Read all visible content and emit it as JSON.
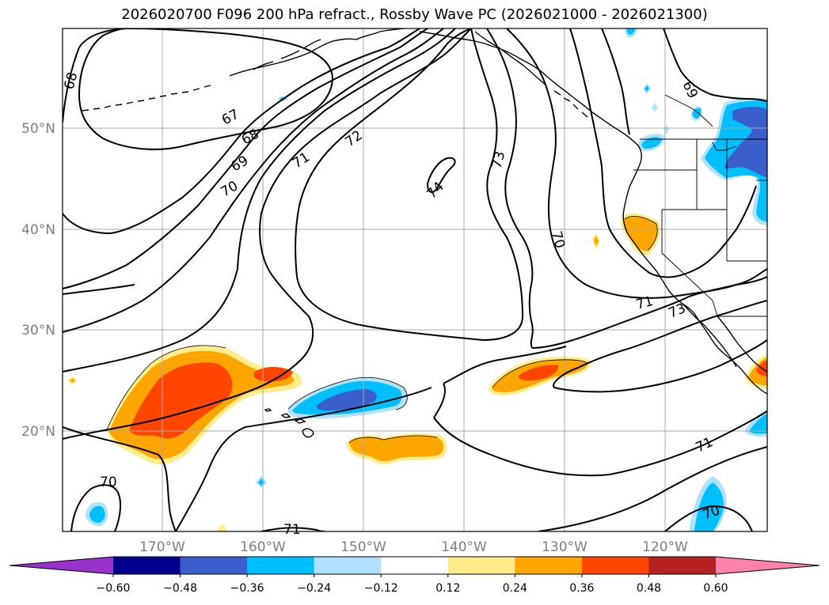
{
  "title": "2026020700 F096 200 hPa refract., Rossby Wave PC (2026021000 - 2026021300)",
  "lon_labels": [
    "170°W",
    "160°W",
    "150°W",
    "140°W",
    "130°W",
    "120°W"
  ],
  "lat_labels": [
    "50°N",
    "40°N",
    "30°N",
    "20°N"
  ],
  "contour_labels": [
    "67",
    "68",
    "69",
    "70",
    "71",
    "72",
    "73",
    "74",
    "73",
    "70",
    "71",
    "73",
    "71",
    "70",
    "70",
    "71",
    "68",
    "69"
  ],
  "colorbar": {
    "ticks": [
      "−0.60",
      "−0.48",
      "−0.36",
      "−0.24",
      "−0.12",
      "0.12",
      "0.24",
      "0.36",
      "0.48",
      "0.60"
    ],
    "colors": [
      "#9932cc",
      "#00008b",
      "#3a5fcd",
      "#00bfff",
      "#b0e2ff",
      "#ffffff",
      "#ffec8b",
      "#ffa500",
      "#ff4500",
      "#b22222",
      "#ff82ab"
    ]
  },
  "fill_colors": {
    "orange": "#ffa500",
    "red_orange": "#ff4500",
    "light_yellow": "#ffec8b",
    "deep_sky_blue": "#00bfff",
    "light_blue": "#b0e2ff",
    "royal_blue": "#3a5fcd"
  }
}
